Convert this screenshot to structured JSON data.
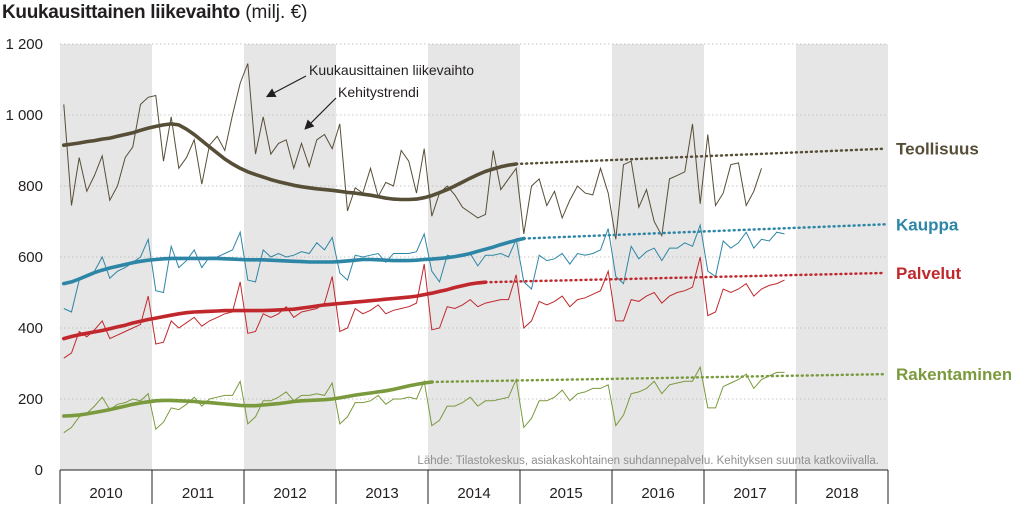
{
  "chart_data": {
    "type": "line",
    "title": "Kuukausittainen liikevaihto",
    "unit": "(milj. €)",
    "y_ticks": [
      0,
      200,
      400,
      600,
      800,
      1000,
      1200
    ],
    "y_tick_labels": [
      "0",
      "200",
      "400",
      "600",
      "800",
      "1 000",
      "1 200"
    ],
    "ylim": [
      0,
      1200
    ],
    "years": [
      "2010",
      "2011",
      "2012",
      "2013",
      "2014",
      "2015",
      "2016",
      "2017",
      "2018"
    ],
    "shaded_years": [
      "2010",
      "2012",
      "2014",
      "2016",
      "2018"
    ],
    "x_start": "2010-01",
    "grid": true,
    "legend_placement": "right, labels at line ends",
    "annotations": {
      "monthly": "Kuukausittainen liikevaihto",
      "trend": "Kehitystrendi"
    },
    "source": "Lähde: Tilastokeskus, asiakaskohtainen suhdannepalvelu. Kehityksen suunta katkoviivalla.",
    "series": [
      {
        "name": "Teollisuus",
        "color": "#574e37",
        "monthly": [
          1030,
          745,
          880,
          785,
          830,
          885,
          760,
          800,
          880,
          910,
          1030,
          1050,
          1055,
          870,
          995,
          850,
          880,
          930,
          805,
          915,
          940,
          900,
          1000,
          1090,
          1145,
          890,
          995,
          890,
          920,
          930,
          850,
          920,
          855,
          930,
          945,
          905,
          975,
          730,
          795,
          780,
          850,
          770,
          810,
          800,
          900,
          870,
          780,
          905,
          715,
          780,
          800,
          775,
          740,
          725,
          710,
          720,
          900,
          790,
          820,
          850,
          665,
          800,
          820,
          745,
          785,
          710,
          760,
          800,
          780,
          775,
          850,
          780,
          650,
          860,
          870,
          740,
          790,
          700,
          660,
          820,
          830,
          840,
          975,
          750,
          945,
          745,
          780,
          860,
          865,
          745,
          785,
          850
        ],
        "trend": [
          915,
          918,
          921,
          925,
          928,
          932,
          935,
          940,
          945,
          950,
          957,
          963,
          968,
          972,
          975,
          972,
          960,
          945,
          928,
          910,
          893,
          876,
          862,
          850,
          840,
          832,
          825,
          818,
          812,
          807,
          802,
          798,
          795,
          792,
          790,
          788,
          785,
          782,
          780,
          777,
          774,
          770,
          766,
          763,
          762,
          762,
          763,
          767,
          773,
          781,
          790,
          800,
          811,
          822,
          832,
          841,
          848,
          854,
          859,
          862
        ],
        "projection_end": 905
      },
      {
        "name": "Kauppa",
        "color": "#2e86a6",
        "monthly": [
          455,
          445,
          535,
          550,
          560,
          600,
          540,
          560,
          570,
          585,
          600,
          650,
          505,
          500,
          630,
          570,
          590,
          620,
          570,
          600,
          600,
          610,
          620,
          670,
          535,
          530,
          620,
          600,
          610,
          600,
          605,
          615,
          610,
          640,
          620,
          655,
          555,
          535,
          605,
          600,
          605,
          610,
          585,
          610,
          610,
          610,
          615,
          665,
          560,
          530,
          605,
          600,
          605,
          610,
          575,
          605,
          605,
          610,
          600,
          650,
          530,
          510,
          605,
          590,
          595,
          610,
          580,
          610,
          605,
          610,
          620,
          680,
          545,
          525,
          630,
          595,
          615,
          625,
          590,
          625,
          625,
          640,
          630,
          690,
          560,
          545,
          645,
          625,
          640,
          670,
          625,
          650,
          645,
          670,
          665
        ],
        "trend": [
          525,
          530,
          538,
          547,
          556,
          563,
          569,
          574,
          579,
          584,
          588,
          591,
          593,
          595,
          596,
          596,
          596,
          596,
          596,
          596,
          596,
          595,
          594,
          593,
          592,
          592,
          592,
          591,
          590,
          589,
          588,
          587,
          586,
          586,
          586,
          586,
          587,
          589,
          591,
          593,
          593,
          592,
          591,
          590,
          590,
          590,
          591,
          593,
          594,
          596,
          598,
          601,
          605,
          610,
          616,
          622,
          628,
          635,
          641,
          647,
          652
        ],
        "projection_end": 692
      },
      {
        "name": "Palvelut",
        "color": "#c0282d",
        "monthly": [
          315,
          330,
          390,
          375,
          395,
          420,
          370,
          380,
          390,
          400,
          410,
          490,
          355,
          360,
          420,
          400,
          415,
          430,
          405,
          420,
          430,
          440,
          445,
          530,
          385,
          390,
          440,
          430,
          440,
          460,
          430,
          445,
          450,
          455,
          470,
          545,
          390,
          400,
          455,
          440,
          450,
          465,
          440,
          450,
          455,
          460,
          470,
          580,
          395,
          400,
          460,
          455,
          465,
          480,
          460,
          470,
          475,
          480,
          480,
          550,
          400,
          420,
          475,
          465,
          475,
          490,
          460,
          480,
          485,
          495,
          505,
          560,
          420,
          420,
          480,
          475,
          490,
          500,
          470,
          490,
          500,
          505,
          515,
          600,
          435,
          445,
          510,
          500,
          510,
          525,
          490,
          510,
          520,
          525,
          535
        ],
        "trend": [
          370,
          376,
          381,
          385,
          389,
          393,
          398,
          403,
          408,
          414,
          419,
          424,
          428,
          432,
          436,
          440,
          443,
          445,
          446,
          447,
          448,
          449,
          449,
          449,
          449,
          449,
          449,
          450,
          451,
          452,
          453,
          456,
          459,
          462,
          465,
          467,
          469,
          471,
          473,
          475,
          477,
          479,
          481,
          483,
          485,
          487,
          490,
          494,
          498,
          503,
          508,
          514,
          519,
          524,
          527,
          529
        ],
        "projection_end": 555
      },
      {
        "name": "Rakentaminen",
        "color": "#7a9a3d",
        "monthly": [
          105,
          120,
          150,
          160,
          180,
          205,
          170,
          185,
          190,
          200,
          195,
          215,
          115,
          135,
          175,
          170,
          185,
          205,
          180,
          200,
          205,
          210,
          210,
          250,
          130,
          150,
          195,
          195,
          205,
          220,
          195,
          210,
          210,
          215,
          210,
          245,
          130,
          150,
          190,
          190,
          195,
          210,
          185,
          200,
          200,
          205,
          200,
          250,
          125,
          140,
          180,
          180,
          190,
          205,
          180,
          195,
          195,
          200,
          205,
          255,
          120,
          145,
          195,
          195,
          205,
          225,
          195,
          215,
          220,
          230,
          230,
          240,
          125,
          155,
          215,
          220,
          230,
          250,
          215,
          240,
          245,
          250,
          250,
          290,
          175,
          175,
          235,
          245,
          255,
          270,
          230,
          255,
          265,
          275,
          275
        ],
        "trend": [
          152,
          153,
          155,
          158,
          162,
          166,
          170,
          175,
          180,
          185,
          189,
          192,
          195,
          196,
          196,
          195,
          194,
          193,
          191,
          190,
          188,
          186,
          184,
          182,
          181,
          181,
          183,
          185,
          187,
          190,
          193,
          195,
          196,
          197,
          198,
          200,
          203,
          207,
          211,
          214,
          217,
          220,
          223,
          227,
          232,
          237,
          241,
          245,
          248
        ],
        "projection_end": 270
      }
    ]
  }
}
